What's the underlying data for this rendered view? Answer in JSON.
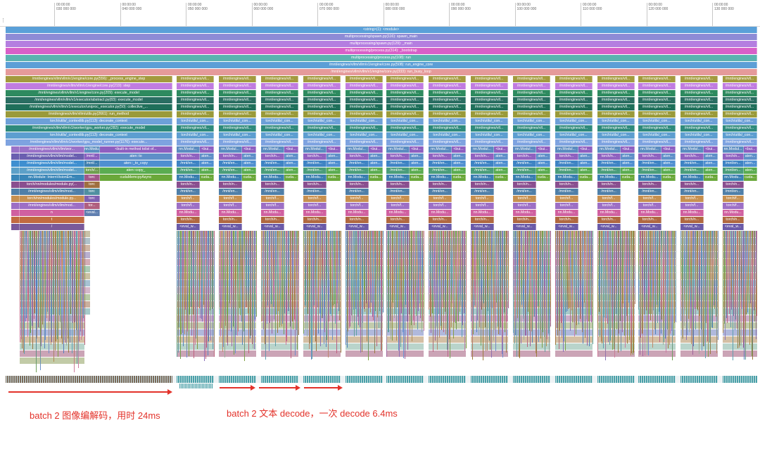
{
  "ruler": {
    "ticks": [
      "00:00:00\n030 000 000",
      "00:00:00\n040 000 000",
      "00:00:00\n050 000 000",
      "00:00:00\n060 000 000",
      "00:00:00\n070 000 000",
      "00:00:00\n080 000 000",
      "00:00:00\n090 000 000",
      "00:00:00\n100 000 000",
      "00:00:00\n110 000 000",
      "00:00:00\n120 000 000",
      "00:00:00\n130 000 000"
    ],
    "handle": "⋮"
  },
  "flame": {
    "full_rows": [
      {
        "label": "<string>(1): <module>",
        "color": "#5aa0d8"
      },
      {
        "label": "multiprocessing/spawn.py(116): spawn_main",
        "color": "#8e8bd6"
      },
      {
        "label": "multiprocessing/spawn.py(129): _main",
        "color": "#b47ee0"
      },
      {
        "label": "multiprocessing/process.py(314): _bootstrap",
        "color": "#d860c8"
      },
      {
        "label": "multiprocessing/process.py(108): run",
        "color": "#5bb3b0"
      },
      {
        "label": "/mnt/engines/vllm/vllm/v1/engine/core.py(508): run_engine_core",
        "color": "#5c9fd6"
      },
      {
        "label": "/mnt/engines/vllm/vllm/v1/engine/core.py(333): run_busy_loop",
        "color": "#e59a9a"
      }
    ],
    "first_block_rows": [
      {
        "label": "/mnt/engines/vllm/vllm/v1/engine/core.py(556): _process_engine_step",
        "color": "#a39a3e"
      },
      {
        "label": "/mnt/engines/vllm/vllm/v1/engine/core.py(219): step",
        "color": "#c07ce0"
      },
      {
        "label": "/mnt/engines/vllm/vllm/v1/engine/core.py(209): execute_model",
        "color": "#2e8a5f"
      },
      {
        "label": "/mnt/engines/vllm/vllm/v1/executor/abstract.py(83): execute_model",
        "color": "#2a6e62"
      },
      {
        "label": "/mnt/engines/vllm/vllm/v1/executor/uniproc_executor.py(50): collective_...",
        "color": "#1f6f5a"
      },
      {
        "label": "/mnt/engines/vllm/vllm/utils.py(2661): run_method",
        "color": "#9a9a3a"
      },
      {
        "label": "torch/utils/_contextlib.py(113): decorate_context",
        "color": "#6da0d8"
      },
      {
        "label": "/mnt/engines/vllm/vllm/v1/worker/gpu_worker.py(282): execute_model",
        "color": "#2f8a7c"
      },
      {
        "label": "torch/utils/_contextlib.py(113): decorate_context",
        "color": "#5d9ed0"
      },
      {
        "label": "/mnt/engines/vllm/vllm/v1/worker/gpu_model_runner.py(1176): execute...",
        "color": "#7ea3e0"
      }
    ],
    "first_block_sub": [
      {
        "label": "/mnt/engines/vllm/vllm/wor...",
        "color": "#9a72c8"
      },
      {
        "label": "/mnt/engines/vllm/vllm/model...",
        "color": "#6a5fb0"
      },
      {
        "label": "/mnt/engines/vllm/vllm/model...",
        "color": "#3f8fd0"
      },
      {
        "label": "/mnt/engines/vllm/vllm/model...",
        "color": "#5ca0c8"
      },
      {
        "label": "nn.Module: InternVisionEm...",
        "color": "#3a86b8"
      },
      {
        "label": "torch/nn/modules/module.py(...",
        "color": "#8a4f8f"
      },
      {
        "label": "/mnt/engines/vllm/vllm/mod...",
        "color": "#4f7fa8"
      },
      {
        "label": "torch/nn/modules/module.py...",
        "color": "#c79050"
      },
      {
        "label": "/mnt/engines/vllm/vllm/mod...",
        "color": "#9d6fc5"
      },
      {
        "label": "n",
        "color": "#d060a0"
      },
      {
        "label": "t",
        "color": "#c26a40"
      },
      {
        "label": "/",
        "color": "#7a5a9a"
      }
    ],
    "first_block_side": [
      {
        "label": "nn.Modu...",
        "color": "#5c8fbf"
      },
      {
        "label": "/mnt/...",
        "color": "#8a5fbf"
      },
      {
        "label": "/mnt/...",
        "color": "#3f7faf"
      },
      {
        "label": "torch/...",
        "color": "#6f9f4f"
      },
      {
        "label": "torc",
        "color": "#a2568a"
      },
      {
        "label": "torc",
        "color": "#9f6f3f"
      },
      {
        "label": "torc",
        "color": "#4f8fa0"
      },
      {
        "label": "torc",
        "color": "#7f5fb0"
      },
      {
        "label": "tor...",
        "color": "#b05f7f"
      },
      {
        "label": "<eval...",
        "color": "#5f7fb0"
      }
    ],
    "first_block_right": [
      {
        "label": "<built-in method tolist of...",
        "color": "#8f5fc0"
      },
      {
        "label": "aten::to",
        "color": "#5f8fc8"
      },
      {
        "label": "aten::_to_copy",
        "color": "#4f8fd0"
      },
      {
        "label": "aten::copy_",
        "color": "#5aac50"
      },
      {
        "label": "cudaMemcpyAsync",
        "color": "#6aa83a"
      }
    ],
    "block_labels": [
      "/mnt/engines/vll...",
      "/mnt/engines/vll...",
      "/mnt/engines/vll...",
      "/mnt/engines/vll...",
      "/mnt/engines/vll...",
      "/mnt/engines/vll...",
      "torch/utils/_con...",
      "/mnt/engines/vll...",
      "torch/utils/_con...",
      "/mnt/engines/vll..."
    ],
    "block_sub": [
      {
        "label": "nn.Modul...",
        "color": "#5b8cc0"
      },
      {
        "label": "torch/n...",
        "color": "#9062c0"
      },
      {
        "label": "/mnt/en...",
        "color": "#3f84c4"
      },
      {
        "label": "/mnt/en...",
        "color": "#4a9d7a"
      },
      {
        "label": "nn.Modu...",
        "color": "#3a7fb0"
      },
      {
        "label": "torch/n...",
        "color": "#8a4f8f"
      },
      {
        "label": "/mnt/en...",
        "color": "#4f7fa8"
      },
      {
        "label": "torch/f...",
        "color": "#c79050"
      },
      {
        "label": "torch/f...",
        "color": "#9d6fc5"
      },
      {
        "label": "nn.Modu...",
        "color": "#d060a0"
      },
      {
        "label": "torch/n...",
        "color": "#b06840"
      },
      {
        "label": "<eval_w...",
        "color": "#6a5aa8"
      }
    ],
    "block_side": [
      {
        "label": "<bui...",
        "color": "#8e5fc0"
      },
      {
        "label": "aten...",
        "color": "#5f8fc8"
      },
      {
        "label": "aten...",
        "color": "#4f8fd0"
      },
      {
        "label": "aten...",
        "color": "#5aac50"
      },
      {
        "label": "cuda...",
        "color": "#6aa83a"
      }
    ]
  },
  "annotations": {
    "image_decode": "batch 2 图像编解码，用时 24ms",
    "text_decode": "batch 2 文本 decode，一次 decode 6.4ms"
  }
}
